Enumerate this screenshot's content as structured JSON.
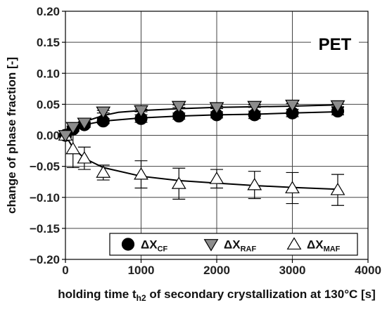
{
  "chart_data": {
    "type": "scatter",
    "annotation": "PET",
    "xlabel": {
      "main": "holding time t",
      "sub": "h2",
      "rest": " of secondary crystallization at 130°C [s]"
    },
    "ylabel": "change of phase fraction [-]",
    "xlim": [
      0,
      4000
    ],
    "ylim": [
      -0.2,
      0.2
    ],
    "xticks": [
      0,
      1000,
      2000,
      3000,
      4000
    ],
    "xtick_labels": [
      "0",
      "1000",
      "2000",
      "3000",
      "4000"
    ],
    "yticks": [
      -0.2,
      -0.15,
      -0.1,
      -0.05,
      0,
      0.05,
      0.1,
      0.15,
      0.2
    ],
    "ytick_labels": [
      "−0.20",
      "−0.15",
      "−0.10",
      "−0.05",
      "0.00",
      "0.05",
      "0.10",
      "0.15",
      "0.20"
    ],
    "grid": true,
    "legend_position": "bottom",
    "series": [
      {
        "name": "ΔX",
        "name_sub": "CF",
        "marker": "circle",
        "fill": "#000000",
        "x": [
          0,
          100,
          250,
          500,
          1000,
          1500,
          2000,
          2500,
          3000,
          3600
        ],
        "y": [
          0.0,
          0.01,
          0.017,
          0.023,
          0.027,
          0.031,
          0.033,
          0.033,
          0.036,
          0.039
        ],
        "err": [
          0.002,
          0.004,
          0.004,
          0.004,
          0.006,
          0.005,
          0.005,
          0.006,
          0.006,
          0.006
        ],
        "fit": [
          [
            0,
            0.0
          ],
          [
            100,
            0.009
          ],
          [
            250,
            0.017
          ],
          [
            500,
            0.023
          ],
          [
            1000,
            0.028
          ],
          [
            1500,
            0.031
          ],
          [
            2000,
            0.033
          ],
          [
            2500,
            0.034
          ],
          [
            3000,
            0.036
          ],
          [
            3600,
            0.038
          ]
        ]
      },
      {
        "name": "ΔX",
        "name_sub": "RAF",
        "marker": "triangle-down",
        "fill": "#8c8c8c",
        "x": [
          0,
          100,
          250,
          500,
          1000,
          1500,
          2000,
          2500,
          3000,
          3600
        ],
        "y": [
          0.0,
          0.013,
          0.02,
          0.038,
          0.04,
          0.047,
          0.045,
          0.047,
          0.049,
          0.048
        ],
        "err": [
          0.002,
          0.002,
          0.002,
          0.002,
          0.002,
          0.002,
          0.002,
          0.002,
          0.002,
          0.002
        ],
        "fit": [
          [
            0,
            0.0
          ],
          [
            100,
            0.012
          ],
          [
            250,
            0.022
          ],
          [
            500,
            0.032
          ],
          [
            700,
            0.037
          ],
          [
            1000,
            0.04
          ],
          [
            1500,
            0.043
          ],
          [
            2000,
            0.045
          ],
          [
            2500,
            0.046
          ],
          [
            3000,
            0.047
          ],
          [
            3600,
            0.049
          ]
        ]
      },
      {
        "name": "ΔX",
        "name_sub": "MAF",
        "marker": "triangle-up",
        "fill": "#ffffff",
        "x": [
          0,
          100,
          250,
          500,
          1000,
          1500,
          2000,
          2500,
          3000,
          3600
        ],
        "y": [
          0.0,
          -0.022,
          -0.037,
          -0.06,
          -0.063,
          -0.078,
          -0.07,
          -0.08,
          -0.085,
          -0.088
        ],
        "err": [
          0.003,
          0.03,
          0.018,
          0.012,
          0.022,
          0.025,
          0.015,
          0.022,
          0.025,
          0.025
        ],
        "fit": [
          [
            0,
            0.0
          ],
          [
            100,
            -0.02
          ],
          [
            250,
            -0.037
          ],
          [
            500,
            -0.052
          ],
          [
            1000,
            -0.066
          ],
          [
            1500,
            -0.073
          ],
          [
            2000,
            -0.077
          ],
          [
            2500,
            -0.081
          ],
          [
            3000,
            -0.084
          ],
          [
            3600,
            -0.087
          ]
        ]
      }
    ]
  }
}
